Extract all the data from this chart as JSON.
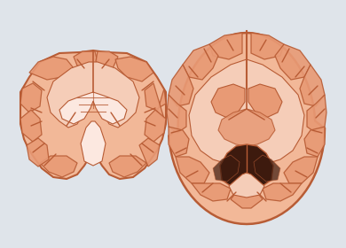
{
  "background_color": "#dfe4ea",
  "brain_light": "#f2b898",
  "brain_medium": "#e89a75",
  "brain_inner": "#f5cdb8",
  "brain_outline": "#b85c35",
  "ventricle_white": "#fce8e0",
  "dark_region": "#3d1a0e",
  "dark_medium": "#7a3520",
  "figsize": [
    3.9,
    2.8
  ],
  "dpi": 100
}
